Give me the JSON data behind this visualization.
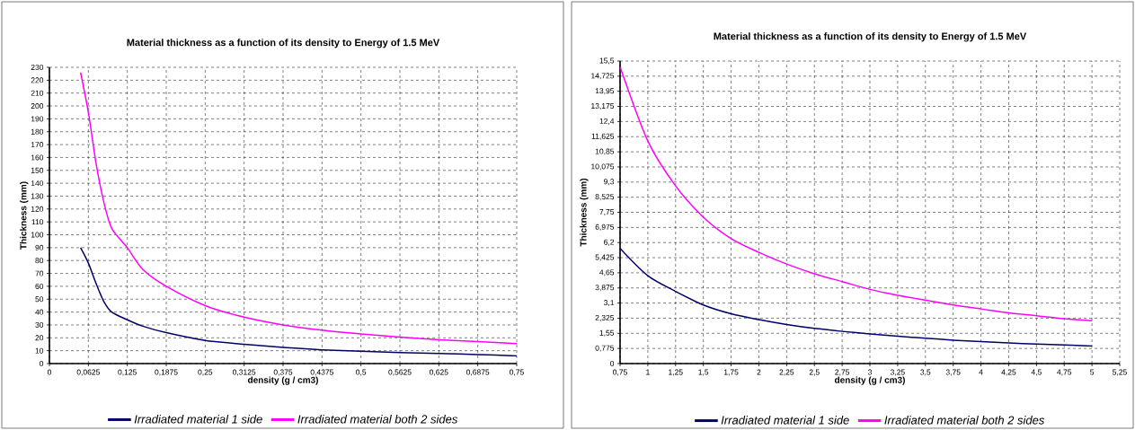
{
  "chart_data": [
    {
      "type": "line",
      "title": "Material thickness  as a function of its density to Energy of 1.5 MeV",
      "xlabel": "density (g / cm3)",
      "ylabel": "Thickness (mm)",
      "xlim": [
        0,
        0.75
      ],
      "ylim": [
        0,
        230
      ],
      "xticks": [
        0,
        {
          "value": 0.0625,
          "label": "0,0625"
        },
        {
          "value": 0.125,
          "label": "0,125"
        },
        {
          "value": 0.1875,
          "label": "0,1875"
        },
        {
          "value": 0.25,
          "label": "0,25"
        },
        {
          "value": 0.3125,
          "label": "0,3125"
        },
        {
          "value": 0.375,
          "label": "0,375"
        },
        {
          "value": 0.4375,
          "label": "0,4375"
        },
        {
          "value": 0.5,
          "label": "0,5"
        },
        {
          "value": 0.5625,
          "label": "0,5625"
        },
        {
          "value": 0.625,
          "label": "0,625"
        },
        {
          "value": 0.6875,
          "label": "0,6875"
        },
        {
          "value": 0.75,
          "label": "0,75"
        }
      ],
      "yticks": [
        0,
        10,
        20,
        30,
        40,
        50,
        60,
        70,
        80,
        90,
        100,
        110,
        120,
        130,
        140,
        150,
        160,
        170,
        180,
        190,
        200,
        210,
        220,
        230
      ],
      "grid": true,
      "legend": "bottom",
      "marker": "none",
      "line_style": "solid",
      "x": [
        0.05,
        0.0625,
        0.075,
        0.0875,
        0.1,
        0.125,
        0.15,
        0.1875,
        0.25,
        0.3125,
        0.375,
        0.4375,
        0.5,
        0.5625,
        0.625,
        0.6875,
        0.75
      ],
      "series": [
        {
          "name": "Irradiated material 1 side",
          "color": "#000066",
          "values": [
            90,
            78,
            62,
            48,
            40,
            34,
            29,
            24,
            18,
            15,
            12.5,
            10.7,
            9.5,
            8.5,
            7.8,
            7,
            6
          ]
        },
        {
          "name": "Irradiated material both 2 sides",
          "color": "#ff00ff",
          "values": [
            226,
            195,
            155,
            125,
            105,
            90,
            73,
            60,
            45,
            36,
            30,
            26,
            23,
            20.5,
            18.5,
            17,
            15.5
          ]
        }
      ]
    },
    {
      "type": "line",
      "title": "Material thickness as a function of its density to Energy of 1.5 MeV",
      "xlabel": "density (g / cm3)",
      "ylabel": "Thickness (mm)",
      "xlim": [
        0.75,
        5.25
      ],
      "ylim": [
        0,
        15.5
      ],
      "xticks": [
        {
          "value": 0.75,
          "label": "0,75"
        },
        1,
        {
          "value": 1.25,
          "label": "1,25"
        },
        {
          "value": 1.5,
          "label": "1,5"
        },
        {
          "value": 1.75,
          "label": "1,75"
        },
        2,
        {
          "value": 2.25,
          "label": "2,25"
        },
        {
          "value": 2.5,
          "label": "2,5"
        },
        {
          "value": 2.75,
          "label": "2,75"
        },
        3,
        {
          "value": 3.25,
          "label": "3,25"
        },
        {
          "value": 3.5,
          "label": "3,5"
        },
        {
          "value": 3.75,
          "label": "3,75"
        },
        4,
        {
          "value": 4.25,
          "label": "4,25"
        },
        {
          "value": 4.5,
          "label": "4,5"
        },
        {
          "value": 4.75,
          "label": "4,75"
        },
        5,
        {
          "value": 5.25,
          "label": "5,25"
        }
      ],
      "yticks": [
        0,
        {
          "value": 0.775,
          "label": "0,775"
        },
        {
          "value": 1.55,
          "label": "1,55"
        },
        {
          "value": 2.325,
          "label": "2,325"
        },
        {
          "value": 3.1,
          "label": "3,1"
        },
        {
          "value": 3.875,
          "label": "3,875"
        },
        {
          "value": 4.65,
          "label": "4,65"
        },
        {
          "value": 5.425,
          "label": "5,425"
        },
        {
          "value": 6.2,
          "label": "6,2"
        },
        {
          "value": 6.975,
          "label": "6,975"
        },
        {
          "value": 7.75,
          "label": "7,75"
        },
        {
          "value": 8.525,
          "label": "8,525"
        },
        {
          "value": 9.3,
          "label": "9,3"
        },
        {
          "value": 10.075,
          "label": "10,075"
        },
        {
          "value": 10.85,
          "label": "10,85"
        },
        {
          "value": 11.625,
          "label": "11,625"
        },
        {
          "value": 12.4,
          "label": "12,4"
        },
        {
          "value": 13.175,
          "label": "13,175"
        },
        {
          "value": 13.95,
          "label": "13,95"
        },
        {
          "value": 14.725,
          "label": "14,725"
        },
        {
          "value": 15.5,
          "label": "15,5"
        }
      ],
      "grid": true,
      "legend": "bottom",
      "marker": "none",
      "line_style": "solid",
      "x": [
        0.75,
        1,
        1.25,
        1.5,
        1.75,
        2,
        2.25,
        2.5,
        2.75,
        3,
        3.25,
        3.5,
        3.75,
        4,
        4.25,
        4.5,
        4.75,
        5
      ],
      "series": [
        {
          "name": "Irradiated material 1 side",
          "color": "#000066",
          "values": [
            5.9,
            4.5,
            3.7,
            3.0,
            2.55,
            2.25,
            2.0,
            1.8,
            1.65,
            1.52,
            1.4,
            1.3,
            1.2,
            1.13,
            1.06,
            1.0,
            0.95,
            0.9
          ]
        },
        {
          "name": "Irradiated material both 2 sides",
          "color": "#ff00ff",
          "values": [
            15.2,
            11.4,
            9.1,
            7.5,
            6.4,
            5.7,
            5.1,
            4.6,
            4.2,
            3.8,
            3.5,
            3.25,
            3.0,
            2.8,
            2.6,
            2.45,
            2.3,
            2.2
          ]
        }
      ]
    }
  ]
}
